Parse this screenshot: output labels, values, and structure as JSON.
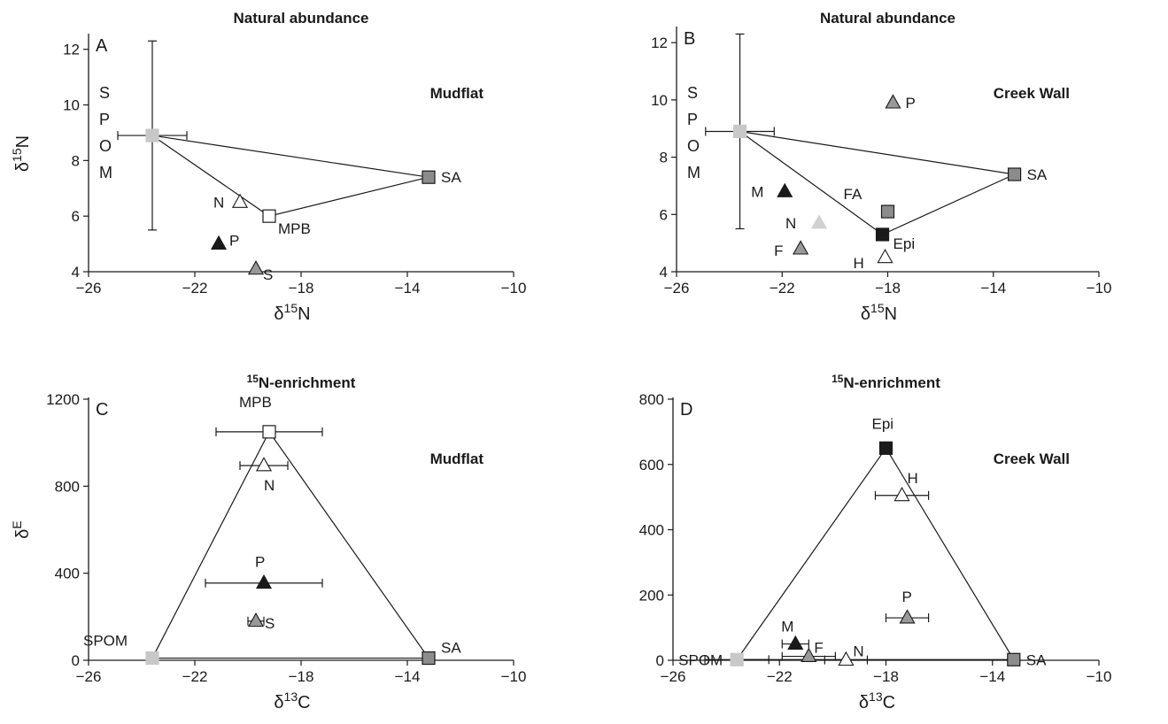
{
  "chart_data": [
    {
      "type": "scatter",
      "panel": "A",
      "title": "Natural abundance",
      "site": "Mudflat",
      "xlabel": "δ15N",
      "ylabel": "δ15N",
      "xlim": [
        -26,
        -10
      ],
      "ylim": [
        4,
        12.5
      ],
      "xticks": [
        "-26",
        "-22",
        "-18",
        "-14",
        "-10"
      ],
      "yticks": [
        "4",
        "6",
        "8",
        "10",
        "12"
      ],
      "polygon": [
        [
          -23.6,
          8.9
        ],
        [
          -19.2,
          6.0
        ],
        [
          -13.2,
          7.4
        ]
      ],
      "points": [
        {
          "label": "SPOM",
          "x": -23.6,
          "y": 8.9,
          "marker": "square",
          "color": "#c8c8c8",
          "xerr": 1.3,
          "yerr": 3.4
        },
        {
          "label": "MPB",
          "x": -19.2,
          "y": 6.0,
          "marker": "square",
          "color": "#ffffff"
        },
        {
          "label": "SA",
          "x": -13.2,
          "y": 7.4,
          "marker": "square",
          "color": "#8c8c8c"
        },
        {
          "label": "N",
          "x": -20.3,
          "y": 6.5,
          "marker": "triangle",
          "color": "#ffffff"
        },
        {
          "label": "P",
          "x": -21.1,
          "y": 5.0,
          "marker": "triangle",
          "color": "#1a1a1a"
        },
        {
          "label": "S",
          "x": -19.7,
          "y": 4.1,
          "marker": "triangle",
          "color": "#999999"
        }
      ]
    },
    {
      "type": "scatter",
      "panel": "B",
      "title": "Natural abundance",
      "site": "Creek Wall",
      "xlabel": "δ15N",
      "ylabel": "",
      "xlim": [
        -26,
        -10
      ],
      "ylim": [
        4,
        12.5
      ],
      "xticks": [
        "-26",
        "-22",
        "-18",
        "-14",
        "-10"
      ],
      "yticks": [
        "4",
        "6",
        "8",
        "10",
        "12"
      ],
      "polygon": [
        [
          -23.6,
          8.9
        ],
        [
          -18.2,
          5.3
        ],
        [
          -13.2,
          7.4
        ]
      ],
      "points": [
        {
          "label": "SPOM",
          "x": -23.6,
          "y": 8.9,
          "marker": "square",
          "color": "#c8c8c8",
          "xerr": 1.3,
          "yerr": 3.4
        },
        {
          "label": "Epi",
          "x": -18.2,
          "y": 5.3,
          "marker": "square",
          "color": "#1a1a1a"
        },
        {
          "label": "SA",
          "x": -13.2,
          "y": 7.4,
          "marker": "square",
          "color": "#8c8c8c"
        },
        {
          "label": "FA",
          "x": -18.0,
          "y": 6.1,
          "marker": "square",
          "color": "#8c8c8c"
        },
        {
          "label": "P",
          "x": -17.8,
          "y": 9.9,
          "marker": "triangle",
          "color": "#999999"
        },
        {
          "label": "M",
          "x": -21.9,
          "y": 6.8,
          "marker": "triangle",
          "color": "#1a1a1a"
        },
        {
          "label": "N",
          "x": -20.6,
          "y": 5.7,
          "marker": "triangle",
          "color": "#d0d0d0"
        },
        {
          "label": "F",
          "x": -21.3,
          "y": 4.8,
          "marker": "triangle",
          "color": "#999999"
        },
        {
          "label": "H",
          "x": -18.1,
          "y": 4.5,
          "marker": "triangle",
          "color": "#ffffff"
        }
      ]
    },
    {
      "type": "scatter",
      "panel": "C",
      "title": "15N-enrichment",
      "site": "Mudflat",
      "xlabel": "δ13C",
      "ylabel": "δE",
      "xlim": [
        -26,
        -10
      ],
      "ylim": [
        0,
        1200
      ],
      "xticks": [
        "-26",
        "-22",
        "-18",
        "-14",
        "-10"
      ],
      "yticks": [
        "0",
        "400",
        "800",
        "1200"
      ],
      "polygon": [
        [
          -23.6,
          10
        ],
        [
          -19.2,
          1050
        ],
        [
          -13.2,
          10
        ]
      ],
      "points": [
        {
          "label": "SPOM",
          "x": -23.6,
          "y": 10,
          "marker": "square",
          "color": "#c8c8c8"
        },
        {
          "label": "MPB",
          "x": -19.2,
          "y": 1050,
          "marker": "square",
          "color": "#ffffff",
          "xerr": 2.0
        },
        {
          "label": "SA",
          "x": -13.2,
          "y": 10,
          "marker": "square",
          "color": "#8c8c8c"
        },
        {
          "label": "N",
          "x": -19.4,
          "y": 895,
          "marker": "triangle",
          "color": "#ffffff",
          "xerr": 0.9
        },
        {
          "label": "P",
          "x": -19.4,
          "y": 355,
          "marker": "triangle",
          "color": "#1a1a1a",
          "xerr": 2.2
        },
        {
          "label": "S",
          "x": -19.7,
          "y": 180,
          "marker": "triangle",
          "color": "#999999",
          "xerr": 0.3
        }
      ]
    },
    {
      "type": "scatter",
      "panel": "D",
      "title": "15N-enrichment",
      "site": "Creek Wall",
      "xlabel": "δ13C",
      "ylabel": "",
      "xlim": [
        -26,
        -10
      ],
      "ylim": [
        0,
        800
      ],
      "xticks": [
        "-26",
        "-22",
        "-18",
        "-14",
        "-10"
      ],
      "yticks": [
        "0",
        "200",
        "400",
        "600",
        "800"
      ],
      "polygon": [
        [
          -23.6,
          2
        ],
        [
          -18.0,
          650
        ],
        [
          -13.2,
          2
        ]
      ],
      "points": [
        {
          "label": "SPOM",
          "x": -23.6,
          "y": 2,
          "marker": "square",
          "color": "#c8c8c8",
          "xerr": 1.2
        },
        {
          "label": "Epi",
          "x": -18.0,
          "y": 650,
          "marker": "square",
          "color": "#1a1a1a"
        },
        {
          "label": "SA",
          "x": -13.2,
          "y": 2,
          "marker": "square",
          "color": "#8c8c8c"
        },
        {
          "label": "H",
          "x": -17.4,
          "y": 505,
          "marker": "triangle",
          "color": "#ffffff",
          "xerr": 1.0
        },
        {
          "label": "P",
          "x": -17.2,
          "y": 130,
          "marker": "triangle",
          "color": "#999999",
          "xerr": 0.8
        },
        {
          "label": "M",
          "x": -21.4,
          "y": 50,
          "marker": "triangle",
          "color": "#1a1a1a",
          "xerr": 0.5
        },
        {
          "label": "F",
          "x": -20.9,
          "y": 12,
          "marker": "triangle",
          "color": "#999999",
          "xerr": 1.0
        },
        {
          "label": "N",
          "x": -19.5,
          "y": 1,
          "marker": "triangle",
          "color": "#ffffff",
          "xerr": 0.8
        }
      ]
    }
  ]
}
